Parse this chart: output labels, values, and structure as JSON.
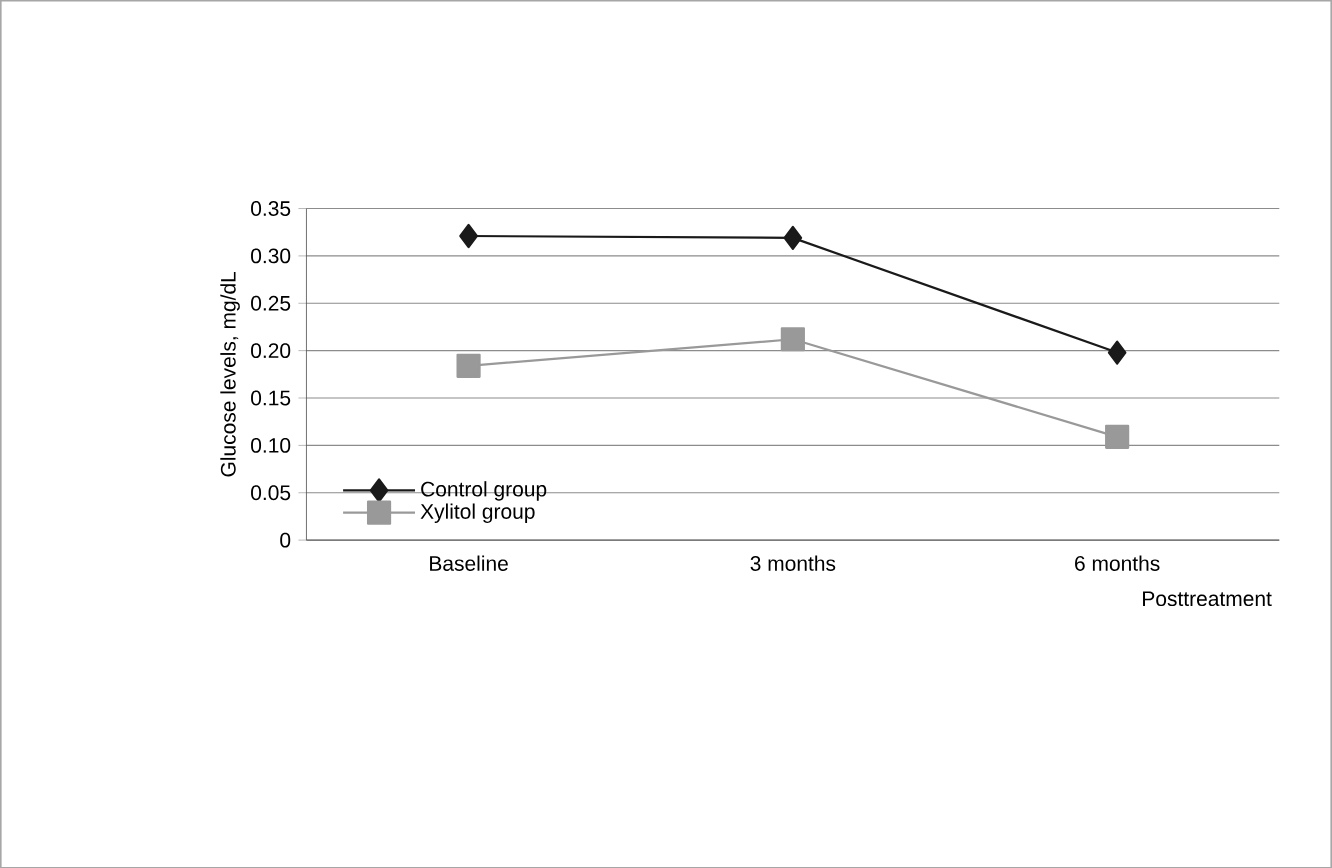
{
  "chart_data": {
    "type": "line",
    "xlabel": "Posttreatment",
    "ylabel": "Glucose levels, mg/dL",
    "categories": [
      "Baseline",
      "3 months",
      "6 months"
    ],
    "series": [
      {
        "name": "Control group",
        "color": "#1a1a1a",
        "marker": "diamond",
        "values": [
          0.321,
          0.319,
          0.198
        ]
      },
      {
        "name": "Xylitol group",
        "color": "#999999",
        "marker": "square",
        "values": [
          0.184,
          0.212,
          0.109
        ]
      }
    ],
    "ylim": [
      0,
      0.35
    ],
    "yticks": [
      0,
      0.05,
      {
        "value": 0.1,
        "label": "0.10"
      },
      0.15,
      {
        "value": 0.2,
        "label": "0.20"
      },
      0.25,
      {
        "value": 0.3,
        "label": "0.30"
      },
      0.35
    ],
    "grid": "y",
    "legend": "bottom left",
    "line_style": "solid"
  }
}
